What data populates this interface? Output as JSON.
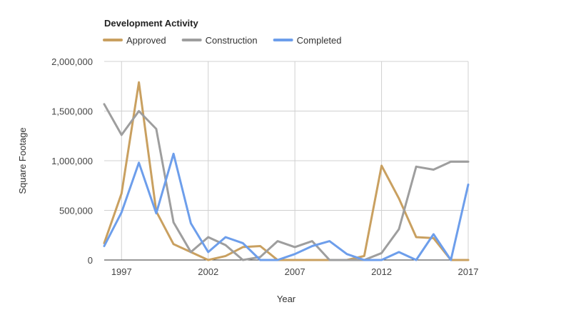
{
  "chart_data": {
    "type": "line",
    "title": "Development Activity",
    "xlabel": "Year",
    "ylabel": "Square Footage",
    "x": [
      1996,
      1997,
      1998,
      1999,
      2000,
      2001,
      2002,
      2003,
      2004,
      2005,
      2006,
      2007,
      2008,
      2009,
      2010,
      2011,
      2012,
      2013,
      2014,
      2015,
      2016,
      2017
    ],
    "xlim": [
      1996,
      2017
    ],
    "ylim": [
      0,
      2000000
    ],
    "x_ticks": [
      1997,
      2002,
      2007,
      2012,
      2017
    ],
    "x_tick_labels": [
      "1997",
      "2002",
      "2007",
      "2012",
      "2017"
    ],
    "y_ticks": [
      0,
      500000,
      1000000,
      1500000,
      2000000
    ],
    "y_tick_labels": [
      "0",
      "500,000",
      "1,000,000",
      "1,500,000",
      "2,000,000"
    ],
    "grid": true,
    "legend_position": "top-left",
    "series": [
      {
        "name": "Approved",
        "color": "#c9a060",
        "values": [
          170000,
          670000,
          1790000,
          490000,
          160000,
          80000,
          0,
          40000,
          130000,
          140000,
          0,
          0,
          0,
          0,
          0,
          40000,
          950000,
          620000,
          230000,
          220000,
          0,
          0
        ]
      },
      {
        "name": "Construction",
        "color": "#9e9e9e",
        "values": [
          1570000,
          1260000,
          1500000,
          1320000,
          380000,
          80000,
          230000,
          150000,
          0,
          30000,
          190000,
          130000,
          190000,
          0,
          0,
          0,
          70000,
          310000,
          940000,
          910000,
          990000,
          990000
        ]
      },
      {
        "name": "Completed",
        "color": "#6d9eeb",
        "values": [
          140000,
          480000,
          980000,
          470000,
          1070000,
          370000,
          80000,
          230000,
          170000,
          0,
          0,
          60000,
          140000,
          190000,
          60000,
          0,
          0,
          80000,
          0,
          260000,
          0,
          760000
        ]
      }
    ]
  }
}
